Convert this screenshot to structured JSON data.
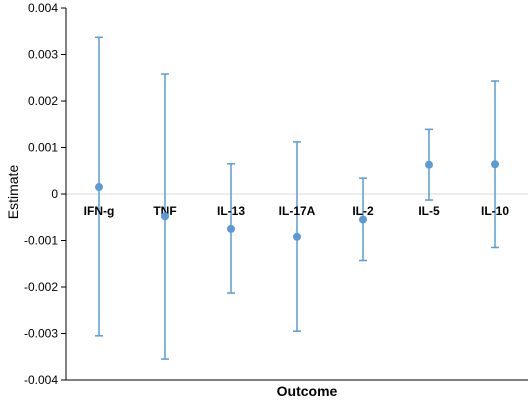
{
  "chart_data": {
    "type": "scatter",
    "title": "",
    "xlabel": "Outcome",
    "ylabel": "Estimate",
    "ylim": [
      -0.004,
      0.004
    ],
    "ytick_values": [
      0.004,
      0.003,
      0.002,
      0.001,
      0,
      -0.001,
      -0.002,
      -0.003,
      -0.004
    ],
    "ytick_labels": [
      "0.004",
      "0.003",
      "0.002",
      "0.001",
      "0",
      "-0.001",
      "-0.002",
      "-0.003",
      "-0.004"
    ],
    "grid": false,
    "zero_line": true,
    "categories": [
      "IFN-g",
      "TNF",
      "IL-13",
      "IL-17A",
      "IL-2",
      "IL-5",
      "IL-10"
    ],
    "estimates": [
      0.00015,
      -0.00048,
      -0.00075,
      -0.00092,
      -0.00055,
      0.00063,
      0.00064
    ],
    "lower": [
      -0.00305,
      -0.00355,
      -0.00213,
      -0.00295,
      -0.00143,
      -0.00013,
      -0.00115
    ],
    "upper": [
      0.00337,
      0.00258,
      0.00065,
      0.00112,
      0.00034,
      0.00139,
      0.00243
    ],
    "colors": {
      "marker": "#5b9bd5",
      "errorbar": "#5b9bd5",
      "zero_line": "#d9d9d9",
      "axis": "#000000"
    }
  }
}
